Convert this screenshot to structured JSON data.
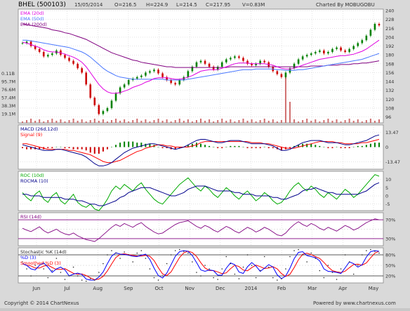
{
  "header": {
    "symbol": "BHEL (500103)",
    "date": "15/05/2014",
    "open": "O=216.5",
    "high": "H=224.9",
    "low": "L=214.5",
    "close": "C=217.95",
    "volume": "V=0.83M",
    "charted_by": "Charted By MOBUGOBU"
  },
  "footer": {
    "copyright": "Copyright © 2014 ChartNexus",
    "powered": "Powered by www.chartnexus.com"
  },
  "colors": {
    "bg": "#ffffff",
    "grid": "#c8c8c8",
    "candle_up": "#008000",
    "candle_down": "#cc0000",
    "ema20": "#e000e0",
    "ema50": "#4a78ff",
    "ema200": "#800080",
    "volume": "#d07070",
    "macd": "#00008b",
    "signal": "#ff0000",
    "roc": "#00aa00",
    "rocma": "#00008b",
    "rsi": "#800080",
    "stoch_k": "#222222",
    "stoch_d": "#0000ff",
    "stoch_sd": "#ff0000"
  },
  "chart_data": {
    "type": "line",
    "x_labels": [
      "Jun",
      "Jul",
      "Aug",
      "Sep",
      "Oct",
      "Nov",
      "Dec",
      "2014",
      "Feb",
      "Mar",
      "Apr",
      "May"
    ],
    "price_panel": {
      "legend": [
        "EMA (20d)",
        "EMA (50d)",
        "EMA (200d)"
      ],
      "y_ticks": [
        240,
        228,
        216,
        204,
        192,
        180,
        168,
        156,
        144,
        132,
        120,
        108,
        96
      ],
      "ylim": [
        88,
        242
      ],
      "volume_ticks": [
        "0.11B",
        "95.7M",
        "76.6M",
        "57.4M",
        "38.3M",
        "19.1M"
      ],
      "close": [
        196,
        198,
        192,
        188,
        184,
        178,
        180,
        182,
        186,
        180,
        176,
        172,
        168,
        162,
        156,
        140,
        122,
        112,
        100,
        104,
        108,
        118,
        128,
        136,
        140,
        146,
        148,
        150,
        152,
        156,
        158,
        160,
        155,
        150,
        146,
        142,
        140,
        146,
        150,
        158,
        164,
        170,
        172,
        168,
        164,
        160,
        164,
        170,
        174,
        176,
        178,
        176,
        172,
        168,
        166,
        168,
        172,
        170,
        164,
        158,
        154,
        150,
        156,
        162,
        168,
        174,
        178,
        180,
        182,
        184,
        186,
        182,
        184,
        188,
        190,
        186,
        184,
        188,
        192,
        196,
        200,
        206,
        214,
        222,
        220
      ],
      "ema20": [
        197,
        196,
        194,
        192,
        190,
        187,
        185,
        184,
        184,
        183,
        181,
        179,
        177,
        174,
        170,
        164,
        156,
        148,
        140,
        134,
        130,
        128,
        128,
        129,
        131,
        133,
        136,
        138,
        140,
        143,
        145,
        148,
        149,
        149,
        149,
        148,
        147,
        147,
        148,
        150,
        152,
        155,
        158,
        159,
        160,
        160,
        160,
        162,
        164,
        166,
        168,
        169,
        169,
        169,
        168,
        168,
        168,
        168,
        167,
        166,
        164,
        162,
        161,
        161,
        162,
        164,
        166,
        168,
        170,
        172,
        174,
        175,
        176,
        177,
        178,
        179,
        179,
        180,
        181,
        183,
        185,
        188,
        192,
        196,
        200
      ],
      "ema50": [
        200,
        200,
        199,
        198,
        197,
        196,
        195,
        194,
        193,
        192,
        191,
        190,
        188,
        186,
        184,
        181,
        177,
        172,
        167,
        162,
        158,
        155,
        152,
        150,
        149,
        148,
        147,
        147,
        147,
        147,
        147,
        147,
        147,
        147,
        146,
        146,
        146,
        146,
        146,
        147,
        148,
        149,
        150,
        151,
        152,
        153,
        154,
        155,
        156,
        157,
        158,
        159,
        160,
        160,
        160,
        161,
        161,
        161,
        161,
        161,
        160,
        160,
        159,
        159,
        159,
        160,
        160,
        161,
        162,
        163,
        164,
        165,
        166,
        167,
        168,
        169,
        170,
        171,
        172,
        173,
        174,
        176,
        178,
        180,
        182
      ],
      "ema200": [
        222,
        221,
        220,
        219,
        218,
        217,
        216,
        214,
        213,
        212,
        210,
        209,
        207,
        205,
        203,
        201,
        198,
        195,
        192,
        189,
        186,
        183,
        181,
        179,
        177,
        175,
        173,
        172,
        170,
        169,
        168,
        167,
        166,
        165,
        164,
        164,
        163,
        163,
        163,
        163,
        163,
        163,
        163,
        163,
        163,
        163,
        163,
        163,
        163,
        164,
        164,
        164,
        164,
        164,
        164,
        164,
        164,
        164,
        164,
        164,
        164,
        164,
        164,
        164,
        164,
        164,
        164,
        164,
        165,
        165,
        165,
        165,
        166,
        166,
        166,
        167,
        167,
        167,
        168,
        168,
        169,
        169,
        170,
        171,
        172
      ]
    },
    "macd_panel": {
      "legend": [
        "MACD (26d,12d)",
        "Signal (9)"
      ],
      "y_ticks": [
        13.47,
        0,
        -13.47
      ],
      "ylim": [
        -20,
        20
      ],
      "macd": [
        2,
        1,
        0,
        -1,
        -2,
        -3,
        -3,
        -3,
        -2,
        -2,
        -3,
        -4,
        -5,
        -6,
        -7,
        -9,
        -12,
        -15,
        -17,
        -17,
        -16,
        -14,
        -11,
        -8,
        -5,
        -3,
        -1,
        0,
        1,
        2,
        3,
        3,
        2,
        1,
        0,
        -1,
        -2,
        -1,
        0,
        2,
        4,
        6,
        7,
        7,
        6,
        5,
        4,
        4,
        5,
        6,
        6,
        6,
        5,
        4,
        3,
        3,
        3,
        3,
        2,
        1,
        -1,
        -3,
        -3,
        -2,
        0,
        2,
        4,
        5,
        6,
        6,
        6,
        5,
        4,
        4,
        4,
        3,
        2,
        2,
        3,
        4,
        5,
        6,
        8,
        10,
        11
      ],
      "signal": [
        3,
        3,
        2,
        1,
        0,
        -1,
        -2,
        -2,
        -2,
        -2,
        -2,
        -3,
        -3,
        -4,
        -5,
        -6,
        -7,
        -9,
        -11,
        -13,
        -14,
        -14,
        -13,
        -12,
        -10,
        -8,
        -6,
        -4,
        -3,
        -1,
        0,
        1,
        2,
        2,
        1,
        1,
        0,
        0,
        0,
        0,
        1,
        2,
        4,
        5,
        5,
        5,
        5,
        5,
        5,
        5,
        5,
        5,
        5,
        5,
        4,
        4,
        4,
        3,
        3,
        2,
        1,
        0,
        -1,
        -1,
        -1,
        0,
        1,
        2,
        3,
        4,
        5,
        5,
        5,
        5,
        4,
        4,
        3,
        3,
        3,
        3,
        4,
        4,
        5,
        6,
        7
      ]
    },
    "roc_panel": {
      "legend": [
        "ROC (10d)",
        "ROCMA (10)"
      ],
      "y_ticks": [
        10,
        5,
        0,
        -5
      ],
      "ylim": [
        -9,
        15
      ],
      "roc": [
        2,
        -1,
        -3,
        1,
        3,
        -2,
        -4,
        0,
        2,
        -3,
        -5,
        -2,
        1,
        -4,
        -6,
        -7,
        -5,
        -8,
        -9,
        -6,
        -2,
        3,
        6,
        4,
        7,
        5,
        3,
        6,
        8,
        4,
        1,
        -2,
        -4,
        -5,
        -2,
        1,
        4,
        7,
        9,
        11,
        8,
        5,
        3,
        6,
        4,
        1,
        -1,
        2,
        5,
        3,
        0,
        -2,
        1,
        3,
        0,
        -3,
        -1,
        2,
        0,
        -3,
        -5,
        -4,
        -1,
        3,
        6,
        8,
        5,
        3,
        6,
        4,
        1,
        -1,
        2,
        0,
        -2,
        1,
        4,
        2,
        -1,
        1,
        4,
        7,
        10,
        13,
        12
      ],
      "rocma": [
        1,
        1,
        0,
        0,
        0,
        -1,
        -1,
        -1,
        -1,
        -1,
        -2,
        -2,
        -2,
        -3,
        -3,
        -4,
        -5,
        -5,
        -6,
        -6,
        -5,
        -4,
        -3,
        -1,
        0,
        2,
        3,
        4,
        5,
        5,
        5,
        4,
        3,
        2,
        1,
        0,
        0,
        1,
        2,
        4,
        5,
        6,
        6,
        6,
        5,
        4,
        3,
        3,
        3,
        3,
        2,
        2,
        1,
        1,
        1,
        0,
        0,
        0,
        0,
        -1,
        -1,
        -2,
        -2,
        -1,
        0,
        1,
        3,
        4,
        4,
        5,
        4,
        3,
        2,
        2,
        1,
        1,
        1,
        1,
        1,
        1,
        2,
        3,
        5,
        7,
        8
      ]
    },
    "rsi_panel": {
      "legend": [
        "RSI (14d)"
      ],
      "y_ticks": [
        "70%",
        "30%"
      ],
      "ylim": [
        15,
        85
      ],
      "rsi": [
        52,
        48,
        45,
        50,
        55,
        47,
        42,
        46,
        50,
        44,
        40,
        38,
        42,
        36,
        32,
        28,
        26,
        24,
        30,
        38,
        46,
        54,
        60,
        56,
        62,
        58,
        54,
        60,
        64,
        56,
        50,
        44,
        40,
        42,
        48,
        54,
        60,
        64,
        66,
        68,
        62,
        56,
        52,
        58,
        54,
        48,
        44,
        50,
        56,
        52,
        46,
        42,
        48,
        54,
        50,
        44,
        48,
        54,
        50,
        44,
        38,
        36,
        42,
        52,
        60,
        66,
        60,
        56,
        62,
        58,
        52,
        48,
        54,
        50,
        46,
        52,
        58,
        54,
        48,
        52,
        58,
        64,
        68,
        72,
        70
      ]
    },
    "stoch_panel": {
      "legend": [
        "Stochastic %K (14d)",
        "%D (3)",
        "Smoothed %D (3)"
      ],
      "y_ticks": [
        "80%",
        "50%",
        "20%"
      ],
      "ylim": [
        0,
        100
      ],
      "k": [
        60,
        40,
        20,
        50,
        80,
        40,
        15,
        35,
        70,
        30,
        10,
        20,
        45,
        20,
        8,
        5,
        12,
        8,
        30,
        55,
        80,
        92,
        85,
        70,
        88,
        80,
        60,
        85,
        92,
        70,
        40,
        15,
        8,
        20,
        55,
        80,
        92,
        95,
        90,
        85,
        60,
        30,
        20,
        50,
        40,
        15,
        10,
        40,
        75,
        55,
        25,
        12,
        45,
        80,
        50,
        15,
        35,
        75,
        45,
        15,
        8,
        12,
        40,
        75,
        92,
        95,
        80,
        60,
        85,
        70,
        35,
        15,
        50,
        30,
        10,
        40,
        80,
        60,
        25,
        50,
        80,
        92,
        95,
        90,
        85
      ],
      "d": [
        55,
        50,
        40,
        37,
        50,
        57,
        45,
        30,
        40,
        45,
        37,
        20,
        25,
        28,
        24,
        11,
        8,
        8,
        17,
        31,
        55,
        76,
        86,
        82,
        81,
        79,
        76,
        75,
        79,
        82,
        67,
        42,
        21,
        14,
        28,
        52,
        76,
        89,
        92,
        90,
        78,
        58,
        37,
        33,
        37,
        35,
        22,
        22,
        42,
        57,
        52,
        31,
        27,
        46,
        58,
        48,
        33,
        42,
        52,
        45,
        23,
        12,
        20,
        42,
        69,
        87,
        89,
        78,
        75,
        72,
        63,
        40,
        33,
        32,
        30,
        27,
        43,
        60,
        55,
        45,
        52,
        74,
        89,
        92,
        90
      ]
    }
  }
}
